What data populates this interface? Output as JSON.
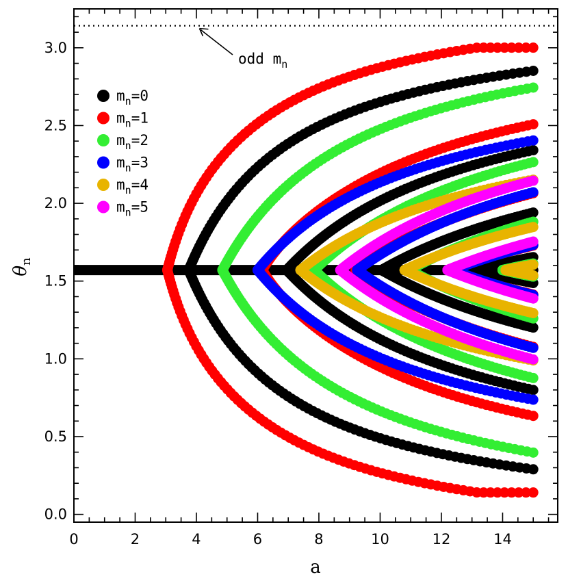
{
  "chart_data": {
    "type": "scatter",
    "title": "",
    "xlabel": "a",
    "ylabel": "θ",
    "ylabel_sub": "n",
    "xlim": [
      0,
      15.8
    ],
    "ylim": [
      -0.05,
      3.25
    ],
    "xticks": [
      0,
      2,
      4,
      6,
      8,
      10,
      12,
      14
    ],
    "xtick_labels": [
      "0",
      "2",
      "4",
      "6",
      "8",
      "10",
      "12",
      "14"
    ],
    "yticks": [
      0.0,
      0.5,
      1.0,
      1.5,
      2.0,
      2.5,
      3.0
    ],
    "ytick_labels": [
      "0.0",
      "0.5",
      "1.0",
      "1.5",
      "2.0",
      "2.5",
      "3.0"
    ],
    "reference_line": {
      "y": 3.1416,
      "style": "dotted"
    },
    "annotation": {
      "text": "odd m",
      "sub": "n",
      "points_to": [
        4.1,
        3.1416
      ]
    },
    "legend": [
      {
        "label": "m",
        "sub": "n",
        "suffix": "=0",
        "color": "#000000"
      },
      {
        "label": "m",
        "sub": "n",
        "suffix": "=1",
        "color": "#ff0000"
      },
      {
        "label": "m",
        "sub": "n",
        "suffix": "=2",
        "color": "#33ee33"
      },
      {
        "label": "m",
        "sub": "n",
        "suffix": "=3",
        "color": "#0000ff"
      },
      {
        "label": "m",
        "sub": "n",
        "suffix": "=4",
        "color": "#e8b400"
      },
      {
        "label": "m",
        "sub": "n",
        "suffix": "=5",
        "color": "#ff00ff"
      }
    ],
    "legend_position": "top-left",
    "series": [
      {
        "name": "m_n=0",
        "color": "#000000",
        "kind": "line",
        "x0": 0,
        "x1": 15,
        "y": 1.5708
      },
      {
        "name": "m_n=0",
        "color": "#000000",
        "kind": "branch",
        "a0": 3.75,
        "x1": 15,
        "amp": 1.31,
        "p": 0.5,
        "bulge": 0
      },
      {
        "name": "m_n=0",
        "color": "#000000",
        "kind": "branch",
        "a0": 6.95,
        "x1": 15,
        "amp": 1.08,
        "p": 0.5,
        "bulge": 0
      },
      {
        "name": "m_n=0",
        "color": "#000000",
        "kind": "branch",
        "a0": 10.05,
        "x1": 15,
        "amp": 0.83,
        "p": 0.5,
        "bulge": 0
      },
      {
        "name": "m_n=0",
        "color": "#000000",
        "kind": "branch",
        "a0": 13.1,
        "x1": 15,
        "amp": 0.48,
        "p": 0.5,
        "bulge": 0
      },
      {
        "name": "m_n=1",
        "color": "#ff0000",
        "kind": "branch",
        "a0": 3.05,
        "x1": 15,
        "amp": 1.43,
        "p": 0.5,
        "bulge": 0.2
      },
      {
        "name": "m_n=1",
        "color": "#ff0000",
        "kind": "branch",
        "a0": 6.15,
        "x1": 15,
        "amp": 1.2,
        "p": 0.5,
        "bulge": 0.2
      },
      {
        "name": "m_n=1",
        "color": "#ff0000",
        "kind": "branch",
        "a0": 9.2,
        "x1": 15,
        "amp": 0.95,
        "p": 0.5,
        "bulge": 0.2
      },
      {
        "name": "m_n=1",
        "color": "#ff0000",
        "kind": "branch",
        "a0": 12.35,
        "x1": 15,
        "amp": 0.65,
        "p": 0.5,
        "bulge": 0.2
      },
      {
        "name": "m_n=2",
        "color": "#33ee33",
        "kind": "branch",
        "a0": 4.85,
        "x1": 15,
        "amp": 1.32,
        "p": 0.5,
        "bulge": 0
      },
      {
        "name": "m_n=2",
        "color": "#33ee33",
        "kind": "branch",
        "a0": 7.85,
        "x1": 15,
        "amp": 1.09,
        "p": 0.5,
        "bulge": 0
      },
      {
        "name": "m_n=2",
        "color": "#33ee33",
        "kind": "branch",
        "a0": 10.95,
        "x1": 15,
        "amp": 0.85,
        "p": 0.5,
        "bulge": 0
      },
      {
        "name": "m_n=2",
        "color": "#33ee33",
        "kind": "branch",
        "a0": 14.0,
        "x1": 15,
        "amp": 0.46,
        "p": 0.5,
        "bulge": 0
      },
      {
        "name": "m_n=3",
        "color": "#0000ff",
        "kind": "branch",
        "a0": 6.0,
        "x1": 15,
        "amp": 1.05,
        "p": 0.5,
        "bulge": 0
      },
      {
        "name": "m_n=3",
        "color": "#0000ff",
        "kind": "branch",
        "a0": 9.25,
        "x1": 15,
        "amp": 0.97,
        "p": 0.5,
        "bulge": 0
      },
      {
        "name": "m_n=3",
        "color": "#0000ff",
        "kind": "branch",
        "a0": 12.35,
        "x1": 15,
        "amp": 0.67,
        "p": 0.5,
        "bulge": 0
      },
      {
        "name": "m_n=4",
        "color": "#e8b400",
        "kind": "branch",
        "a0": 7.4,
        "x1": 15,
        "amp": 0.86,
        "p": 0.5,
        "bulge": 0
      },
      {
        "name": "m_n=4",
        "color": "#e8b400",
        "kind": "branch",
        "a0": 10.8,
        "x1": 15,
        "amp": 0.73,
        "p": 0.5,
        "bulge": 0
      },
      {
        "name": "m_n=4",
        "color": "#e8b400",
        "kind": "branch",
        "a0": 14.1,
        "x1": 15,
        "amp": 0.42,
        "p": 0.5,
        "bulge": 0
      },
      {
        "name": "m_n=5",
        "color": "#ff00ff",
        "kind": "branch",
        "a0": 8.7,
        "x1": 15,
        "amp": 1.02,
        "p": 0.5,
        "bulge": 0
      },
      {
        "name": "m_n=5",
        "color": "#ff00ff",
        "kind": "branch",
        "a0": 12.2,
        "x1": 15,
        "amp": 0.72,
        "p": 0.5,
        "bulge": 0
      }
    ]
  }
}
